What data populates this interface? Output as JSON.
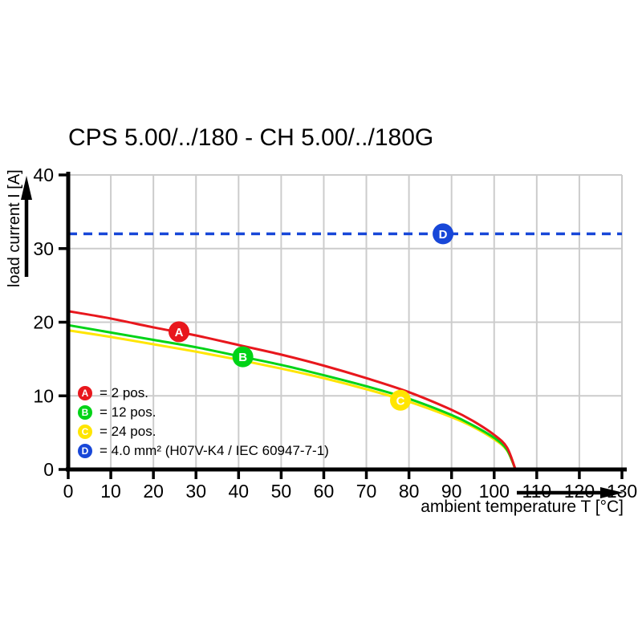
{
  "title": "CPS 5.00/../180 - CH 5.00/../180G",
  "axes": {
    "x_label": "ambient temperature T [°C]",
    "y_label": "load current I [A]",
    "x_ticks": [
      0,
      10,
      20,
      30,
      40,
      50,
      60,
      70,
      80,
      90,
      100,
      110,
      120,
      130
    ],
    "y_ticks": [
      0,
      10,
      20,
      30,
      40
    ]
  },
  "colors": {
    "curve_a_red": "#e8171d",
    "curve_b_green": "#00d317",
    "curve_c_yellow": "#ffe500",
    "line_d_blue": "#1847d8",
    "grid": "#cccccc",
    "axis": "#000000"
  },
  "legend": [
    {
      "id": "A",
      "label": "= 2 pos.",
      "color": "#e8171d"
    },
    {
      "id": "B",
      "label": "= 12 pos.",
      "color": "#00d317"
    },
    {
      "id": "C",
      "label": "= 24 pos.",
      "color": "#ffe500"
    },
    {
      "id": "D",
      "label": "= 4.0 mm² (H07V-K4 / IEC 60947-7-1)",
      "color": "#1847d8"
    }
  ],
  "chart_data": {
    "type": "line",
    "title": "CPS 5.00/../180 - CH 5.00/../180G",
    "xlabel": "ambient temperature T [°C]",
    "ylabel": "load current I [A]",
    "xlim": [
      0,
      130
    ],
    "ylim": [
      0,
      40
    ],
    "grid": true,
    "x_tick_step": 10,
    "y_tick_step": 10,
    "legend_position": "lower-left",
    "series": [
      {
        "name": "A = 2 pos.",
        "color": "#e8171d",
        "style": "solid",
        "points": [
          [
            0,
            21.5
          ],
          [
            10,
            20.5
          ],
          [
            20,
            19.3
          ],
          [
            30,
            18.2
          ],
          [
            40,
            16.9
          ],
          [
            50,
            15.6
          ],
          [
            60,
            14.1
          ],
          [
            70,
            12.4
          ],
          [
            80,
            10.5
          ],
          [
            90,
            8.1
          ],
          [
            95,
            6.6
          ],
          [
            100,
            4.7
          ],
          [
            103,
            3.0
          ],
          [
            105,
            0
          ]
        ]
      },
      {
        "name": "B = 12 pos.",
        "color": "#00d317",
        "style": "solid",
        "points": [
          [
            0,
            19.6
          ],
          [
            10,
            18.6
          ],
          [
            20,
            17.6
          ],
          [
            30,
            16.6
          ],
          [
            40,
            15.4
          ],
          [
            50,
            14.2
          ],
          [
            60,
            12.8
          ],
          [
            70,
            11.3
          ],
          [
            80,
            9.6
          ],
          [
            90,
            7.4
          ],
          [
            95,
            6.0
          ],
          [
            100,
            4.3
          ],
          [
            103,
            2.7
          ],
          [
            105,
            0
          ]
        ]
      },
      {
        "name": "C = 24 pos.",
        "color": "#ffe500",
        "style": "solid",
        "points": [
          [
            0,
            18.9
          ],
          [
            10,
            18.0
          ],
          [
            20,
            17.0
          ],
          [
            30,
            16.0
          ],
          [
            40,
            14.9
          ],
          [
            50,
            13.7
          ],
          [
            60,
            12.4
          ],
          [
            70,
            10.9
          ],
          [
            80,
            9.2
          ],
          [
            90,
            7.1
          ],
          [
            95,
            5.8
          ],
          [
            100,
            4.1
          ],
          [
            103,
            2.6
          ],
          [
            105,
            0
          ]
        ]
      },
      {
        "name": "D = 4.0 mm² (H07V-K4 / IEC 60947-7-1)",
        "color": "#1847d8",
        "style": "dashed",
        "points": [
          [
            0,
            32
          ],
          [
            130,
            32
          ]
        ]
      }
    ],
    "point_markers": [
      {
        "id": "A",
        "x": 26,
        "y": 18.7,
        "color": "#e8171d"
      },
      {
        "id": "B",
        "x": 41,
        "y": 15.3,
        "color": "#00d317"
      },
      {
        "id": "C",
        "x": 78,
        "y": 9.4,
        "color": "#ffe500"
      },
      {
        "id": "D",
        "x": 88,
        "y": 32,
        "color": "#1847d8"
      }
    ]
  }
}
